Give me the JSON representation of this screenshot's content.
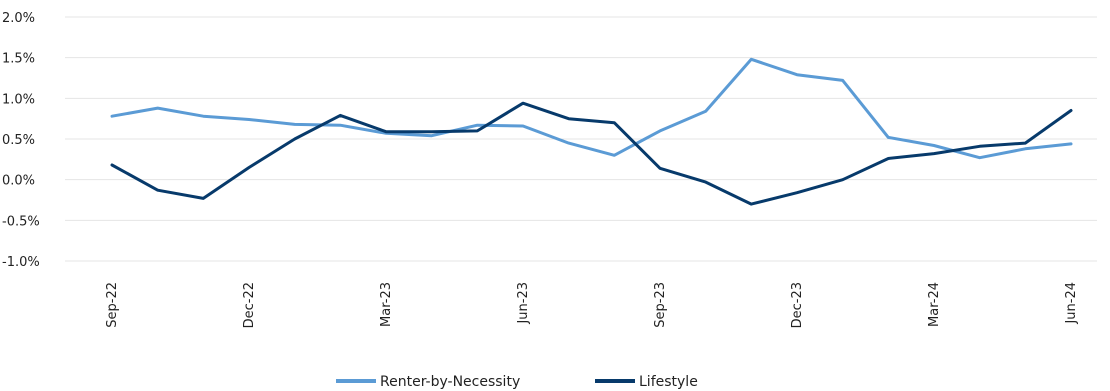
{
  "chart_data": {
    "type": "line",
    "title": "",
    "xlabel": "",
    "ylabel": "",
    "ylim": [
      -1.0,
      2.0
    ],
    "yticks": [
      "2.0%",
      "1.5%",
      "1.0%",
      "0.5%",
      "0.0%",
      "-0.5%",
      "-1.0%"
    ],
    "x": [
      "Sep-22",
      "Oct-22",
      "Nov-22",
      "Dec-22",
      "Jan-23",
      "Feb-23",
      "Mar-23",
      "Apr-23",
      "May-23",
      "Jun-23",
      "Jul-23",
      "Aug-23",
      "Sep-23",
      "Oct-23",
      "Nov-23",
      "Dec-23",
      "Jan-24",
      "Feb-24",
      "Mar-24",
      "Apr-24",
      "May-24",
      "Jun-24"
    ],
    "xtick_labels": [
      "Sep-22",
      "Dec-22",
      "Mar-23",
      "Jun-23",
      "Sep-23",
      "Dec-23",
      "Mar-24",
      "Jun-24"
    ],
    "grid": true,
    "legend_position": "bottom-center",
    "series": [
      {
        "name": "Renter-by-Necessity",
        "color": "#5b9bd5",
        "values": [
          0.78,
          0.88,
          0.78,
          0.74,
          0.68,
          0.67,
          0.57,
          0.54,
          0.67,
          0.66,
          0.45,
          0.3,
          0.6,
          0.84,
          1.48,
          1.29,
          1.22,
          0.52,
          0.42,
          0.27,
          0.38,
          0.44
        ]
      },
      {
        "name": "Lifestyle",
        "color": "#073a6b",
        "values": [
          0.18,
          -0.13,
          -0.23,
          0.15,
          0.5,
          0.79,
          0.59,
          0.59,
          0.6,
          0.94,
          0.75,
          0.7,
          0.14,
          -0.03,
          -0.3,
          -0.16,
          0.0,
          0.26,
          0.32,
          0.41,
          0.45,
          0.85
        ]
      }
    ]
  }
}
